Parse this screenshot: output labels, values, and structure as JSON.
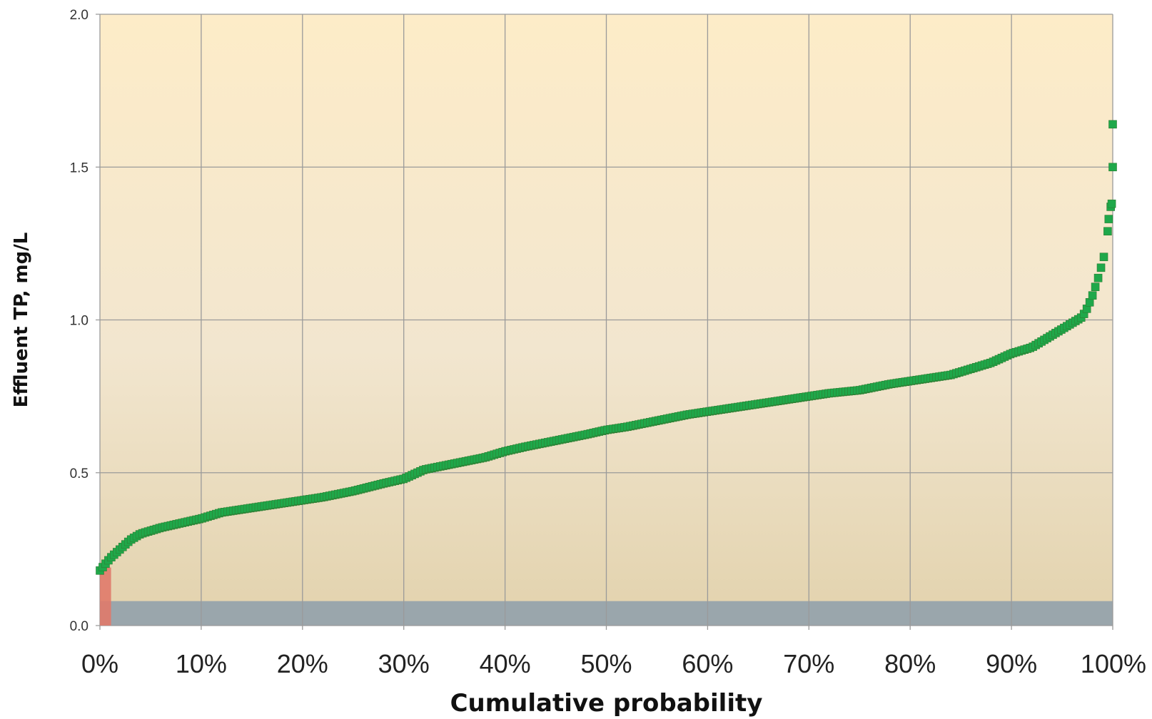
{
  "chart_data": {
    "type": "scatter",
    "title": "",
    "xlabel": "Cumulative probability",
    "ylabel": "Effluent TP, mg/L",
    "xlim": [
      0,
      100
    ],
    "ylim": [
      0,
      2.0
    ],
    "x_ticks": [
      "0%",
      "10%",
      "20%",
      "30%",
      "40%",
      "50%",
      "60%",
      "70%",
      "80%",
      "90%",
      "100%"
    ],
    "y_ticks": [
      "0.0",
      "0.5",
      "1.0",
      "1.5",
      "2.0"
    ],
    "grid": true,
    "legend": "none",
    "colors": {
      "points": "#1fa84a",
      "points_edge": "#2e7d32",
      "band": "#9aa6ac",
      "bar": "#e07a6a",
      "plot_bg_top": "#fdecc8",
      "plot_bg_mid": "#f2e6cf",
      "plot_bg_bottom": "#e2d2ad",
      "grid": "#9a9a9a"
    },
    "bands": [
      {
        "y0": 0,
        "y1": 0.08,
        "x0": 0,
        "x1": 100,
        "color": "#9aa6ac"
      }
    ],
    "bars": [
      {
        "x0": 0,
        "x1": 1.1,
        "y0": 0,
        "y1": 0.19,
        "color": "#e07a6a"
      }
    ],
    "series": [
      {
        "curve_points": [
          [
            0,
            0.18
          ],
          [
            0.5,
            0.2
          ],
          [
            1,
            0.22
          ],
          [
            2,
            0.25
          ],
          [
            3,
            0.28
          ],
          [
            4,
            0.3
          ],
          [
            5,
            0.31
          ],
          [
            6,
            0.32
          ],
          [
            8,
            0.335
          ],
          [
            10,
            0.35
          ],
          [
            12,
            0.37
          ],
          [
            15,
            0.385
          ],
          [
            18,
            0.4
          ],
          [
            20,
            0.41
          ],
          [
            22,
            0.42
          ],
          [
            25,
            0.44
          ],
          [
            28,
            0.465
          ],
          [
            30,
            0.48
          ],
          [
            32,
            0.51
          ],
          [
            35,
            0.53
          ],
          [
            38,
            0.55
          ],
          [
            40,
            0.57
          ],
          [
            42,
            0.585
          ],
          [
            45,
            0.605
          ],
          [
            48,
            0.625
          ],
          [
            50,
            0.64
          ],
          [
            52,
            0.65
          ],
          [
            55,
            0.67
          ],
          [
            58,
            0.69
          ],
          [
            60,
            0.7
          ],
          [
            62,
            0.71
          ],
          [
            65,
            0.725
          ],
          [
            68,
            0.74
          ],
          [
            70,
            0.75
          ],
          [
            72,
            0.76
          ],
          [
            75,
            0.77
          ],
          [
            78,
            0.79
          ],
          [
            80,
            0.8
          ],
          [
            82,
            0.81
          ],
          [
            84,
            0.82
          ],
          [
            86,
            0.84
          ],
          [
            88,
            0.86
          ],
          [
            90,
            0.89
          ],
          [
            92,
            0.91
          ],
          [
            94,
            0.95
          ],
          [
            95,
            0.97
          ],
          [
            96,
            0.99
          ],
          [
            97,
            1.01
          ],
          [
            97.5,
            1.04
          ],
          [
            98,
            1.08
          ],
          [
            98.5,
            1.13
          ],
          [
            99,
            1.19
          ],
          [
            99.3,
            1.23
          ]
        ],
        "outliers": [
          [
            99.5,
            1.29
          ],
          [
            99.6,
            1.33
          ],
          [
            99.8,
            1.37
          ],
          [
            99.9,
            1.38
          ],
          [
            100,
            1.5
          ],
          [
            100,
            1.64
          ]
        ],
        "marker": "square"
      }
    ]
  }
}
